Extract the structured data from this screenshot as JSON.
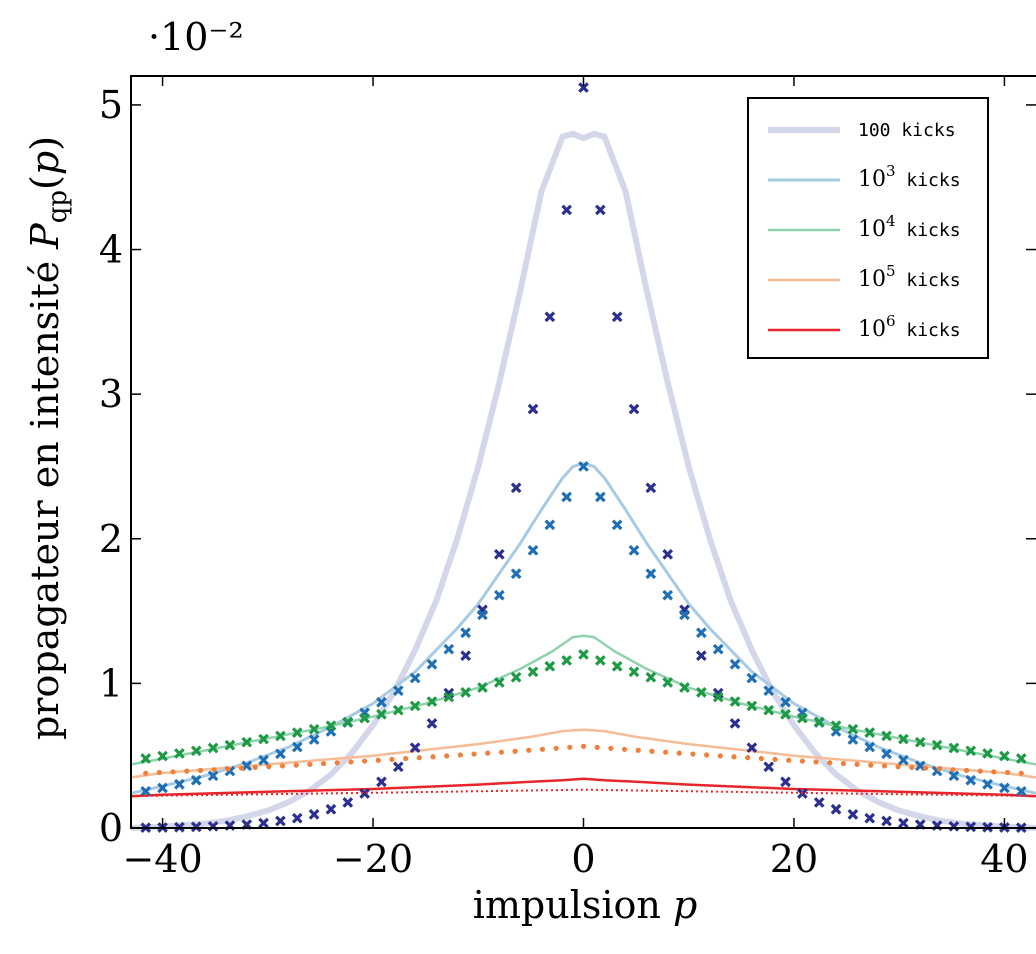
{
  "chart_data": {
    "type": "line",
    "title": "",
    "xlabel": "impulsion p",
    "ylabel": "propagateur en intensité P_qp(p)",
    "y_multiplier": "·10⁻²",
    "xlim": [
      -43,
      43
    ],
    "ylim": [
      0,
      5.2
    ],
    "x_ticks": [
      -40,
      -20,
      0,
      20,
      40
    ],
    "x_tick_labels": [
      "−40",
      "−20",
      "0",
      "20",
      "40"
    ],
    "y_ticks": [
      0,
      1,
      2,
      3,
      4,
      5
    ],
    "y_tick_labels": [
      "0",
      "1",
      "2",
      "3",
      "4",
      "5"
    ],
    "grid": false,
    "legend_position": "top-right",
    "series": [
      {
        "name": "100 kicks",
        "legend_label": "100 kicks",
        "color": "#d4d7ea",
        "marker_color": "#2b2f8f",
        "marker": "x",
        "x": [
          -43,
          -40,
          -38,
          -36,
          -34,
          -32,
          -30,
          -28,
          -26,
          -24,
          -22,
          -20,
          -18,
          -16,
          -14,
          -12,
          -10,
          -8,
          -6,
          -4,
          -2,
          -1,
          0,
          1,
          2,
          4,
          6,
          8,
          10,
          12,
          14,
          16,
          18,
          20,
          22,
          24,
          26,
          28,
          30,
          32,
          34,
          36,
          38,
          40,
          43
        ],
        "values": [
          0.0,
          0.01,
          0.02,
          0.03,
          0.05,
          0.08,
          0.12,
          0.18,
          0.26,
          0.37,
          0.52,
          0.71,
          0.94,
          1.23,
          1.57,
          2.0,
          2.5,
          3.08,
          3.72,
          4.4,
          4.78,
          4.8,
          4.77,
          4.8,
          4.78,
          4.4,
          3.72,
          3.08,
          2.5,
          2.0,
          1.57,
          1.23,
          0.94,
          0.71,
          0.52,
          0.37,
          0.26,
          0.18,
          0.12,
          0.08,
          0.05,
          0.03,
          0.02,
          0.01,
          0.0
        ]
      },
      {
        "name": "10^3 kicks",
        "legend_label": "10",
        "legend_exp": "3",
        "legend_suffix": " kicks",
        "color": "#a8cbe5",
        "marker_color": "#1f6fb5",
        "marker": "x",
        "x": [
          -43,
          -40,
          -36,
          -32,
          -28,
          -24,
          -20,
          -16,
          -12,
          -10,
          -8,
          -6,
          -4,
          -2,
          -1,
          0,
          1,
          2,
          4,
          6,
          8,
          10,
          12,
          16,
          20,
          24,
          28,
          32,
          36,
          40,
          43
        ],
        "values": [
          0.24,
          0.29,
          0.36,
          0.45,
          0.56,
          0.7,
          0.86,
          1.08,
          1.38,
          1.55,
          1.76,
          1.97,
          2.2,
          2.42,
          2.5,
          2.52,
          2.5,
          2.42,
          2.2,
          1.97,
          1.76,
          1.55,
          1.38,
          1.08,
          0.86,
          0.7,
          0.56,
          0.45,
          0.36,
          0.29,
          0.24
        ]
      },
      {
        "name": "10^4 kicks",
        "legend_label": "10",
        "legend_exp": "4",
        "legend_suffix": " kicks",
        "color": "#8fd3ae",
        "marker_color": "#1e9a45",
        "marker": "x",
        "x": [
          -43,
          -40,
          -35,
          -30,
          -25,
          -20,
          -15,
          -10,
          -6,
          -3,
          -1,
          0,
          1,
          3,
          6,
          10,
          15,
          20,
          25,
          30,
          35,
          40,
          43
        ],
        "values": [
          0.44,
          0.48,
          0.55,
          0.62,
          0.69,
          0.77,
          0.86,
          0.97,
          1.1,
          1.22,
          1.32,
          1.33,
          1.32,
          1.22,
          1.1,
          0.97,
          0.86,
          0.77,
          0.69,
          0.62,
          0.55,
          0.48,
          0.44
        ]
      },
      {
        "name": "10^5 kicks",
        "legend_label": "10",
        "legend_exp": "5",
        "legend_suffix": " kicks",
        "color": "#f5bc95",
        "marker_color": "#f07f3c",
        "marker": "dot",
        "x": [
          -43,
          -40,
          -35,
          -30,
          -25,
          -20,
          -15,
          -10,
          -5,
          -2,
          0,
          2,
          5,
          10,
          15,
          20,
          25,
          30,
          35,
          40,
          43
        ],
        "values": [
          0.35,
          0.38,
          0.41,
          0.44,
          0.47,
          0.5,
          0.54,
          0.58,
          0.63,
          0.67,
          0.68,
          0.67,
          0.63,
          0.58,
          0.54,
          0.5,
          0.47,
          0.44,
          0.41,
          0.38,
          0.35
        ]
      },
      {
        "name": "10^6 kicks",
        "legend_label": "10",
        "legend_exp": "6",
        "legend_suffix": " kicks",
        "color": "#e8252a",
        "marker_color": "#e8252a",
        "marker": "dotted-line",
        "x": [
          -43,
          -40,
          -30,
          -20,
          -10,
          -5,
          -2,
          0,
          2,
          5,
          10,
          20,
          30,
          40,
          43
        ],
        "values": [
          0.22,
          0.23,
          0.25,
          0.27,
          0.3,
          0.32,
          0.33,
          0.34,
          0.33,
          0.32,
          0.3,
          0.27,
          0.25,
          0.23,
          0.22
        ]
      }
    ],
    "theory": [
      {
        "series": "100 kicks",
        "kind": "crosses",
        "color": "#2b2f8f",
        "peak": 5.12,
        "decay": 0.125,
        "step": 1.6,
        "peak_x": 0
      },
      {
        "series": "10^3 kicks",
        "kind": "crosses",
        "color": "#1f6fb5",
        "peak": 2.5,
        "decay": 0.055,
        "step": 1.6
      },
      {
        "series": "10^4 kicks",
        "kind": "crosses",
        "color": "#1e9a45",
        "peak": 1.2,
        "decay": 0.022,
        "step": 1.6
      },
      {
        "series": "10^5 kicks",
        "kind": "dots",
        "color": "#f07f3c",
        "peak": 0.565,
        "decay": 0.0096,
        "step": 1.3
      },
      {
        "series": "10^6 kicks",
        "kind": "dotted",
        "color": "#e8252a",
        "peak": 0.265,
        "decay": 0.0042
      }
    ]
  }
}
